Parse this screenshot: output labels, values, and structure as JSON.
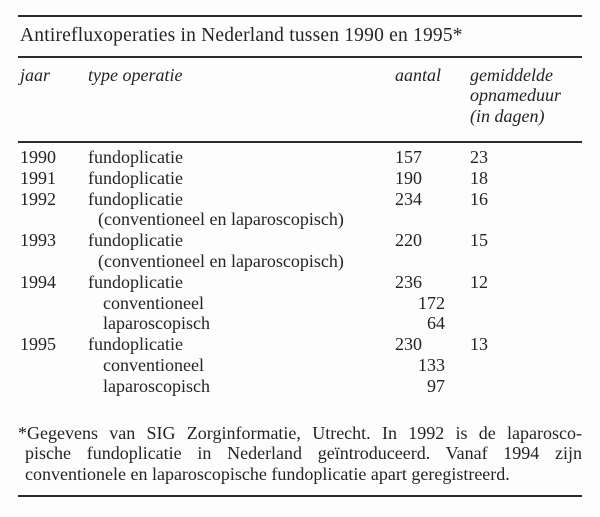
{
  "table": {
    "title": "Antirefluxoperaties in Nederland tussen 1990 en 1995*",
    "headers": {
      "jaar": "jaar",
      "type": "type operatie",
      "aantal": "aantal",
      "duur_lines": [
        "gemiddelde",
        "opnameduur",
        "(in dagen)"
      ]
    },
    "rows": [
      {
        "jaar": "1990",
        "type": "fundoplicatie",
        "aantal": "157",
        "duur": "23"
      },
      {
        "jaar": "1991",
        "type": "fundoplicatie",
        "aantal": "190",
        "duur": "18"
      },
      {
        "jaar": "1992",
        "type": "fundoplicatie",
        "aantal": "234",
        "duur": "16"
      },
      {
        "jaar": "",
        "type": "(conventioneel en laparoscopisch)",
        "aantal": "",
        "duur": ""
      },
      {
        "jaar": "1993",
        "type": "fundoplicatie",
        "aantal": "220",
        "duur": "15"
      },
      {
        "jaar": "",
        "type": "(conventioneel en laparoscopisch)",
        "aantal": "",
        "duur": ""
      },
      {
        "jaar": "1994",
        "type": "fundoplicatie",
        "aantal": "236",
        "duur": "12"
      },
      {
        "jaar": "",
        "type": "conventioneel",
        "aantal": "172",
        "duur": ""
      },
      {
        "jaar": "",
        "type": "laparoscopisch",
        "aantal": "64",
        "duur": ""
      },
      {
        "jaar": "1995",
        "type": "fundoplicatie",
        "aantal": "230",
        "duur": "13"
      },
      {
        "jaar": "",
        "type": "conventioneel",
        "aantal": "133",
        "duur": ""
      },
      {
        "jaar": "",
        "type": "laparoscopisch",
        "aantal": "97",
        "duur": ""
      }
    ],
    "footnote_lines": [
      "*Gegevens van SIG Zorginformatie, Utrecht. In 1992 is de laparosco-",
      "pische fundoplicatie in Nederland geïntroduceerd. Vanaf 1994 zijn",
      "conventionele en laparoscopische fundoplicatie apart geregistreerd."
    ],
    "colors": {
      "text": "#242424",
      "rule": "#2b2b2b",
      "background": "#fdfdfd"
    }
  }
}
